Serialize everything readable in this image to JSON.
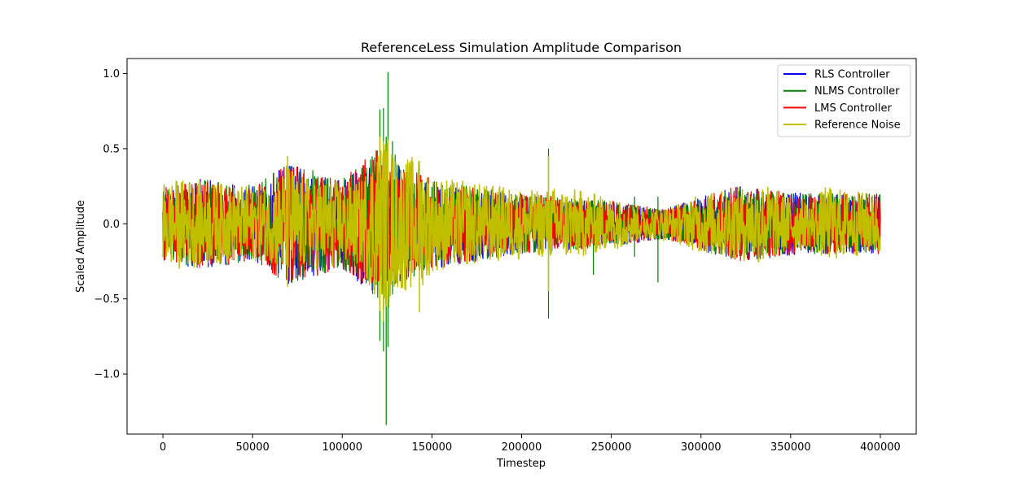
{
  "chart_data": {
    "type": "line",
    "title": "ReferenceLess Simulation Amplitude Comparison",
    "xlabel": "Timestep",
    "ylabel": "Scaled Amplitude",
    "xlim": [
      -20000,
      420000
    ],
    "ylim": [
      -1.4,
      1.1
    ],
    "x_ticks": [
      0,
      50000,
      100000,
      150000,
      200000,
      250000,
      300000,
      350000,
      400000
    ],
    "x_tick_labels": [
      "0",
      "50000",
      "100000",
      "150000",
      "200000",
      "250000",
      "300000",
      "350000",
      "400000"
    ],
    "y_ticks": [
      1.0,
      0.5,
      0.0,
      -0.5,
      -1.0
    ],
    "y_tick_labels": [
      "1.0",
      "0.5",
      "0.0",
      "−0.5",
      "−1.0"
    ],
    "grid": false,
    "legend_position": "top-right",
    "x_range": [
      0,
      400000
    ],
    "series": [
      {
        "name": "RLS Controller",
        "color": "#0000ff",
        "envelope": [
          [
            0,
            0.25
          ],
          [
            20000,
            0.3
          ],
          [
            50000,
            0.25
          ],
          [
            70000,
            0.4
          ],
          [
            100000,
            0.3
          ],
          [
            120000,
            0.5
          ],
          [
            130000,
            0.4
          ],
          [
            150000,
            0.3
          ],
          [
            200000,
            0.2
          ],
          [
            250000,
            0.15
          ],
          [
            280000,
            0.1
          ],
          [
            320000,
            0.25
          ],
          [
            360000,
            0.2
          ],
          [
            400000,
            0.2
          ]
        ],
        "spikes": []
      },
      {
        "name": "NLMS Controller",
        "color": "#008000",
        "envelope": [
          [
            0,
            0.25
          ],
          [
            20000,
            0.3
          ],
          [
            50000,
            0.25
          ],
          [
            70000,
            0.4
          ],
          [
            100000,
            0.3
          ],
          [
            120000,
            0.5
          ],
          [
            130000,
            0.4
          ],
          [
            150000,
            0.3
          ],
          [
            200000,
            0.2
          ],
          [
            250000,
            0.15
          ],
          [
            280000,
            0.1
          ],
          [
            320000,
            0.25
          ],
          [
            360000,
            0.2
          ],
          [
            400000,
            0.2
          ]
        ],
        "spikes": [
          [
            121000,
            0.76,
            -0.78
          ],
          [
            123000,
            0.77,
            -0.85
          ],
          [
            124500,
            0.58,
            -1.34
          ],
          [
            125500,
            1.01,
            -0.82
          ],
          [
            128000,
            0.55,
            -0.47
          ],
          [
            129500,
            0.46,
            -0.38
          ],
          [
            215000,
            0.5,
            -0.63
          ],
          [
            240000,
            0.13,
            -0.34
          ],
          [
            263000,
            0.18,
            -0.22
          ],
          [
            276000,
            0.18,
            -0.39
          ],
          [
            48000,
            0.26,
            -0.22
          ]
        ]
      },
      {
        "name": "LMS Controller",
        "color": "#ff0000",
        "envelope": [
          [
            0,
            0.25
          ],
          [
            20000,
            0.3
          ],
          [
            50000,
            0.25
          ],
          [
            70000,
            0.4
          ],
          [
            100000,
            0.3
          ],
          [
            120000,
            0.5
          ],
          [
            130000,
            0.4
          ],
          [
            150000,
            0.3
          ],
          [
            200000,
            0.2
          ],
          [
            250000,
            0.15
          ],
          [
            280000,
            0.1
          ],
          [
            320000,
            0.25
          ],
          [
            360000,
            0.2
          ],
          [
            400000,
            0.2
          ]
        ],
        "spikes": []
      },
      {
        "name": "Reference Noise",
        "color": "#bfbf00",
        "envelope": [
          [
            0,
            0.28
          ],
          [
            10000,
            0.3
          ],
          [
            25000,
            0.28
          ],
          [
            45000,
            0.25
          ],
          [
            60000,
            0.25
          ],
          [
            70000,
            0.42
          ],
          [
            75000,
            0.32
          ],
          [
            90000,
            0.3
          ],
          [
            110000,
            0.28
          ],
          [
            120000,
            0.55
          ],
          [
            125000,
            0.6
          ],
          [
            130000,
            0.45
          ],
          [
            143000,
            0.45
          ],
          [
            150000,
            0.32
          ],
          [
            170000,
            0.28
          ],
          [
            190000,
            0.25
          ],
          [
            210000,
            0.22
          ],
          [
            220000,
            0.25
          ],
          [
            235000,
            0.22
          ],
          [
            255000,
            0.16
          ],
          [
            270000,
            0.1
          ],
          [
            285000,
            0.12
          ],
          [
            300000,
            0.2
          ],
          [
            320000,
            0.24
          ],
          [
            335000,
            0.28
          ],
          [
            345000,
            0.2
          ],
          [
            360000,
            0.15
          ],
          [
            370000,
            0.25
          ],
          [
            385000,
            0.22
          ],
          [
            400000,
            0.2
          ]
        ],
        "spikes": [
          [
            121000,
            0.58,
            -0.58
          ],
          [
            123000,
            0.55,
            -0.65
          ],
          [
            124500,
            0.48,
            -0.55
          ],
          [
            143000,
            0.42,
            -0.59
          ],
          [
            215000,
            0.45,
            -0.45
          ],
          [
            69500,
            0.45,
            -0.42
          ]
        ]
      }
    ]
  }
}
